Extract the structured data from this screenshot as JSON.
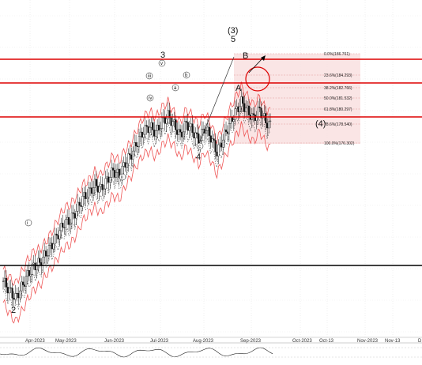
{
  "chart_data": {
    "type": "line",
    "title": "",
    "xlabel": "",
    "ylabel": "",
    "x_ticks": [
      "Apr-2023",
      "May-2023",
      "Jun-2023",
      "Jul-2023",
      "Aug-2023",
      "Sep-2023",
      "Oct-2023",
      "Oct-13",
      "Nov-2023",
      "Nov-13",
      "D"
    ],
    "ylim": [
      172,
      192
    ],
    "grid": true,
    "price_series": [
      {
        "t": 0,
        "close": 175.2
      },
      {
        "t": 4,
        "close": 174.6
      },
      {
        "t": 8,
        "close": 174.1
      },
      {
        "t": 12,
        "close": 174.8
      },
      {
        "t": 16,
        "close": 175.6
      },
      {
        "t": 20,
        "close": 176.2
      },
      {
        "t": 24,
        "close": 176.4
      },
      {
        "t": 28,
        "close": 177.0
      },
      {
        "t": 32,
        "close": 177.6
      },
      {
        "t": 36,
        "close": 178.3
      },
      {
        "t": 40,
        "close": 179.0
      },
      {
        "t": 44,
        "close": 179.2
      },
      {
        "t": 48,
        "close": 179.8
      },
      {
        "t": 52,
        "close": 180.6
      },
      {
        "t": 56,
        "close": 181.0
      },
      {
        "t": 60,
        "close": 181.5
      },
      {
        "t": 64,
        "close": 181.2
      },
      {
        "t": 68,
        "close": 181.8
      },
      {
        "t": 72,
        "close": 182.4
      },
      {
        "t": 76,
        "close": 182.1
      },
      {
        "t": 80,
        "close": 182.9
      },
      {
        "t": 84,
        "close": 183.5
      },
      {
        "t": 88,
        "close": 184.3
      },
      {
        "t": 92,
        "close": 185.0
      },
      {
        "t": 96,
        "close": 185.3
      },
      {
        "t": 100,
        "close": 184.9
      },
      {
        "t": 104,
        "close": 185.6
      },
      {
        "t": 108,
        "close": 186.0
      },
      {
        "t": 112,
        "close": 185.4
      },
      {
        "t": 116,
        "close": 184.7
      },
      {
        "t": 120,
        "close": 185.5
      },
      {
        "t": 124,
        "close": 185.0
      },
      {
        "t": 128,
        "close": 184.4
      },
      {
        "t": 132,
        "close": 185.2
      },
      {
        "t": 136,
        "close": 184.6
      },
      {
        "t": 140,
        "close": 183.6
      },
      {
        "t": 144,
        "close": 184.5
      },
      {
        "t": 148,
        "close": 185.4
      },
      {
        "t": 152,
        "close": 186.2
      },
      {
        "t": 156,
        "close": 186.9
      },
      {
        "t": 160,
        "close": 186.3
      },
      {
        "t": 164,
        "close": 185.8
      },
      {
        "t": 168,
        "close": 186.4
      },
      {
        "t": 172,
        "close": 185.6
      },
      {
        "t": 176,
        "close": 185.3
      }
    ],
    "price_lines": [
      186.35,
      185.15,
      184.0,
      176.6
    ],
    "fib_zone": [
      180.0,
      186.9
    ],
    "fib_levels": [
      {
        "label": "0.0%(186.761)",
        "value": 186.761
      },
      {
        "label": "23.6%(184.293)",
        "value": 184.293
      },
      {
        "label": "38.2%(182.766)",
        "value": 182.766
      },
      {
        "label": "50.0%(181.532)",
        "value": 181.532
      },
      {
        "label": "61.8%(180.297)",
        "value": 180.297
      },
      {
        "label": "78.6%(178.540)",
        "value": 178.54
      },
      {
        "label": "100.0%(176.302)",
        "value": 176.302
      }
    ],
    "wave_labels": [
      "(3)",
      "5",
      "3",
      "4",
      "2",
      "(4)",
      "B",
      "A",
      "v",
      "iv",
      "iii",
      "ii",
      "i",
      "a",
      "b",
      "c"
    ]
  },
  "colors": {
    "candle": "#111111",
    "bollinger": "#ee4444",
    "ma_dotted": "#555555",
    "support_red": "#dd0000",
    "support_black": "#000000",
    "fib_fill": "#f8d6d6",
    "wave_arrow": "#000000"
  }
}
